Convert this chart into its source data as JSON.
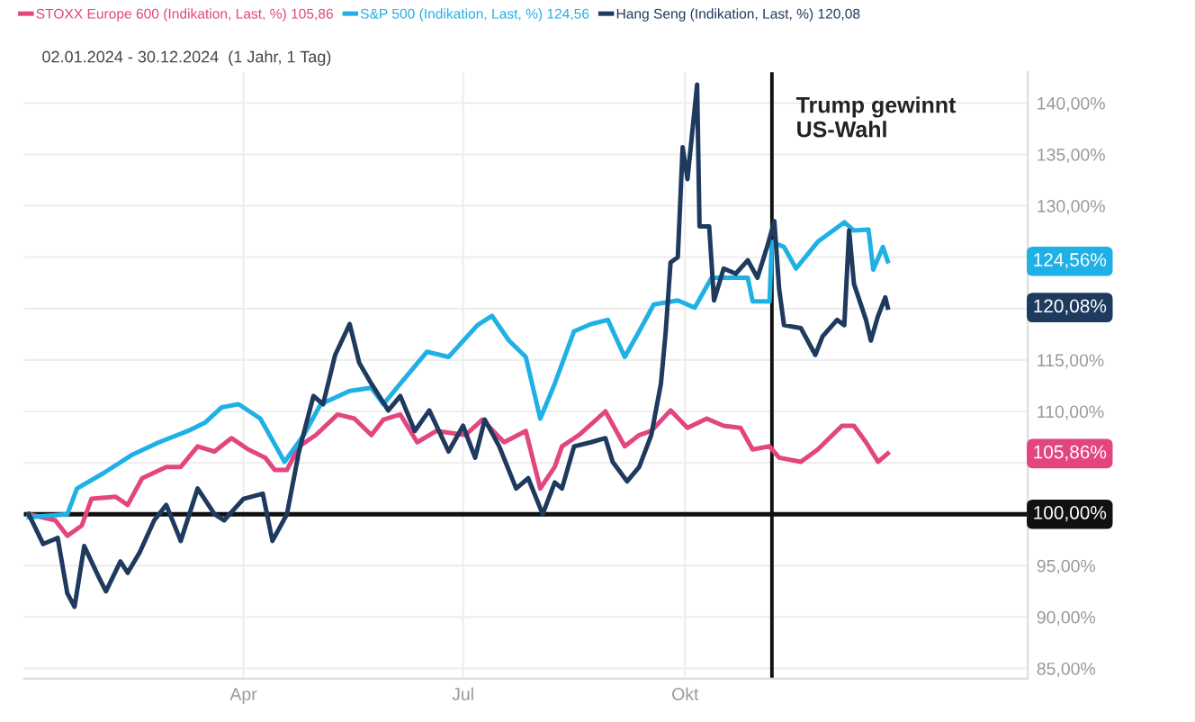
{
  "chart_data": {
    "type": "line",
    "subtitle": "02.01.2024 - 30.12.2024  (1 Jahr, 1 Tag)",
    "xlim": [
      "2024-01-01",
      "2025-02-20"
    ],
    "xticks": [
      {
        "value": "2024-04-01",
        "label": "Apr"
      },
      {
        "value": "2024-07-01",
        "label": "Jul"
      },
      {
        "value": "2024-10-01",
        "label": "Okt"
      }
    ],
    "ylim": [
      84,
      143
    ],
    "yticks": [
      {
        "value": 85,
        "label": "85,00%"
      },
      {
        "value": 90,
        "label": "90,00%"
      },
      {
        "value": 95,
        "label": "95,00%"
      },
      {
        "value": 100,
        "label": null
      },
      {
        "value": 105,
        "label": null
      },
      {
        "value": 110,
        "label": "110,00%"
      },
      {
        "value": 115,
        "label": "115,00%"
      },
      {
        "value": 120,
        "label": null
      },
      {
        "value": 125,
        "label": null
      },
      {
        "value": 130,
        "label": "130,00%"
      },
      {
        "value": 135,
        "label": "135,00%"
      },
      {
        "value": 140,
        "label": "140,00%"
      }
    ],
    "grid": true,
    "legend": "top left",
    "marker": "none",
    "line_style": "solid",
    "ref_lines": [
      {
        "axis": "y",
        "value": 100,
        "label": "100,00%",
        "color": "#111111"
      },
      {
        "axis": "x",
        "value": "2024-11-06",
        "label": "Trump gewinnt\nUS-Wahl",
        "color": "#111111"
      }
    ],
    "annotations": [
      "105,86%",
      "124,56%",
      "120,08%"
    ],
    "series": [
      {
        "name": "STOXX Europe 600 (Indikation, Last, %) 105,86",
        "color": "#e2457f",
        "x": [
          "2024-01-03",
          "2024-01-14",
          "2024-01-19",
          "2024-01-25",
          "2024-01-29",
          "2024-02-08",
          "2024-02-13",
          "2024-02-19",
          "2024-02-29",
          "2024-03-06",
          "2024-03-13",
          "2024-03-20",
          "2024-03-27",
          "2024-04-03",
          "2024-04-10",
          "2024-04-14",
          "2024-04-19",
          "2024-04-24",
          "2024-05-01",
          "2024-05-10",
          "2024-05-17",
          "2024-05-24",
          "2024-05-29",
          "2024-06-05",
          "2024-06-12",
          "2024-06-20",
          "2024-07-02",
          "2024-07-09",
          "2024-07-18",
          "2024-07-27",
          "2024-08-02",
          "2024-08-08",
          "2024-08-11",
          "2024-08-18",
          "2024-08-29",
          "2024-09-06",
          "2024-09-12",
          "2024-09-17",
          "2024-09-25",
          "2024-10-02",
          "2024-10-10",
          "2024-10-17",
          "2024-10-24",
          "2024-10-29",
          "2024-11-05",
          "2024-11-09",
          "2024-11-18",
          "2024-11-25",
          "2024-12-05",
          "2024-12-10",
          "2024-12-15",
          "2024-12-20",
          "2024-12-24"
        ],
        "values": [
          100,
          99.4,
          97.9,
          98.9,
          101.5,
          101.7,
          100.9,
          103.5,
          104.6,
          104.6,
          106.6,
          106.1,
          107.4,
          106.3,
          105.5,
          104.3,
          104.3,
          106.6,
          107.7,
          109.7,
          109.3,
          107.7,
          109.2,
          109.7,
          107,
          108.1,
          107.7,
          109.2,
          107,
          108.1,
          102.5,
          104.6,
          106.6,
          107.7,
          110,
          106.6,
          107.7,
          108.1,
          110.1,
          108.4,
          109.3,
          108.6,
          108.4,
          106.3,
          106.6,
          105.5,
          105.1,
          106.3,
          108.6,
          108.6,
          107,
          105.1,
          105.9
        ]
      },
      {
        "name": "S&P 500 (Indikation, Last, %) 124,56",
        "color": "#1fb0e6",
        "x": [
          "2024-01-03",
          "2024-01-19",
          "2024-01-23",
          "2024-02-03",
          "2024-02-15",
          "2024-02-26",
          "2024-03-09",
          "2024-03-16",
          "2024-03-23",
          "2024-03-30",
          "2024-04-08",
          "2024-04-18",
          "2024-04-26",
          "2024-05-03",
          "2024-05-15",
          "2024-05-24",
          "2024-05-29",
          "2024-06-05",
          "2024-06-16",
          "2024-06-25",
          "2024-07-07",
          "2024-07-13",
          "2024-07-20",
          "2024-07-27",
          "2024-08-02",
          "2024-08-08",
          "2024-08-16",
          "2024-08-23",
          "2024-08-30",
          "2024-09-06",
          "2024-09-12",
          "2024-09-18",
          "2024-09-28",
          "2024-10-05",
          "2024-10-12",
          "2024-10-22",
          "2024-10-27",
          "2024-10-29",
          "2024-11-05",
          "2024-11-06",
          "2024-11-11",
          "2024-11-16",
          "2024-11-25",
          "2024-12-06",
          "2024-12-10",
          "2024-12-16",
          "2024-12-18",
          "2024-12-22",
          "2024-12-24"
        ],
        "values": [
          99.7,
          100,
          102.5,
          104,
          105.8,
          107,
          108.1,
          108.9,
          110.4,
          110.7,
          109.3,
          105.1,
          107.7,
          110.7,
          112,
          112.3,
          110.7,
          112.7,
          115.8,
          115.3,
          118.4,
          119.3,
          116.9,
          115.3,
          109.3,
          112.7,
          117.8,
          118.5,
          118.9,
          115.3,
          117.8,
          120.4,
          120.8,
          120.1,
          123,
          123,
          123,
          120.7,
          120.7,
          126.5,
          126,
          123.9,
          126.5,
          128.4,
          127.6,
          127.7,
          123.8,
          126,
          124.6
        ]
      },
      {
        "name": "Hang Seng (Indikation, Last, %) 120,08",
        "color": "#1f3a5f",
        "x": [
          "2024-01-03",
          "2024-01-09",
          "2024-01-15",
          "2024-01-19",
          "2024-01-22",
          "2024-01-26",
          "2024-02-01",
          "2024-02-04",
          "2024-02-10",
          "2024-02-13",
          "2024-02-18",
          "2024-02-24",
          "2024-02-29",
          "2024-03-06",
          "2024-03-13",
          "2024-03-20",
          "2024-03-24",
          "2024-04-01",
          "2024-04-09",
          "2024-04-13",
          "2024-04-19",
          "2024-04-24",
          "2024-04-30",
          "2024-05-04",
          "2024-05-09",
          "2024-05-15",
          "2024-05-19",
          "2024-05-24",
          "2024-05-31",
          "2024-06-05",
          "2024-06-11",
          "2024-06-17",
          "2024-06-25",
          "2024-07-01",
          "2024-07-06",
          "2024-07-10",
          "2024-07-16",
          "2024-07-23",
          "2024-07-28",
          "2024-08-03",
          "2024-08-08",
          "2024-08-11",
          "2024-08-16",
          "2024-08-23",
          "2024-08-29",
          "2024-09-01",
          "2024-09-07",
          "2024-09-12",
          "2024-09-17",
          "2024-09-21",
          "2024-09-23",
          "2024-09-25",
          "2024-09-28",
          "2024-09-30",
          "2024-10-02",
          "2024-10-06",
          "2024-10-07",
          "2024-10-11",
          "2024-10-13",
          "2024-10-17",
          "2024-10-22",
          "2024-10-27",
          "2024-10-31",
          "2024-11-04",
          "2024-11-07",
          "2024-11-09",
          "2024-11-11",
          "2024-11-18",
          "2024-11-24",
          "2024-11-27",
          "2024-12-03",
          "2024-12-06",
          "2024-12-08",
          "2024-12-10",
          "2024-12-15",
          "2024-12-17",
          "2024-12-20",
          "2024-12-23",
          "2024-12-24"
        ],
        "values": [
          100,
          97.1,
          97.7,
          92.3,
          91,
          96.9,
          93.9,
          92.5,
          95.4,
          94.3,
          96.3,
          99.4,
          100.9,
          97.4,
          102.5,
          100,
          99.4,
          101.5,
          102,
          97.4,
          100,
          106.1,
          111.5,
          110.7,
          115.5,
          118.5,
          114.7,
          112.7,
          110.1,
          111.5,
          108.1,
          110.1,
          106.1,
          108.6,
          105.5,
          109.2,
          106.6,
          102.5,
          103.5,
          100,
          103.1,
          102.5,
          106.6,
          107,
          107.4,
          105.1,
          103.2,
          104.6,
          107.7,
          112.7,
          117.8,
          124.5,
          125,
          135.7,
          132.6,
          141.8,
          128,
          128,
          120.8,
          123.9,
          123.4,
          124.7,
          123,
          126,
          128.5,
          121.9,
          118.4,
          118.1,
          115.5,
          117.3,
          118.9,
          118.4,
          127.6,
          122.4,
          118.9,
          116.9,
          119.3,
          121.1,
          120.1
        ]
      }
    ]
  }
}
